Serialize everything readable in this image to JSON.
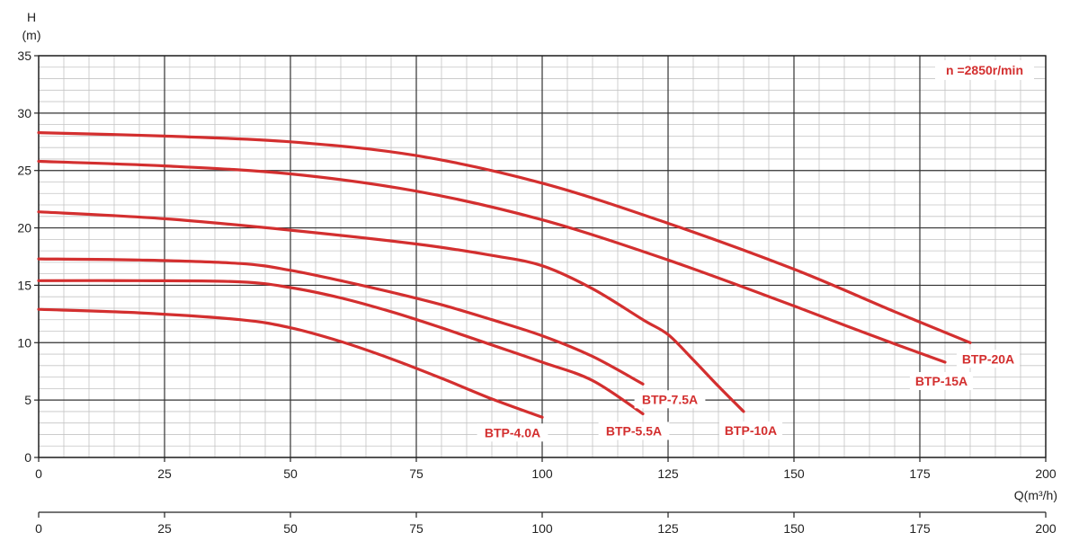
{
  "chart_data": {
    "type": "line",
    "ylabel": "H",
    "yunit": "(m)",
    "xlabel": "Q(m³/h)",
    "annotation": "n =2850r/min",
    "xlim": [
      0,
      200
    ],
    "ylim": [
      0,
      35
    ],
    "x_ticks": [
      0,
      25,
      50,
      75,
      100,
      125,
      150,
      175,
      200
    ],
    "y_ticks": [
      0,
      5,
      10,
      15,
      20,
      25,
      30,
      35
    ],
    "secondary_x_ticks": [
      0,
      25,
      50,
      75,
      100,
      125,
      150,
      175,
      200
    ],
    "grid": true,
    "series_color": "#d32f2f",
    "series": [
      {
        "name": "BTP-4.0A",
        "points": [
          [
            0,
            12.9
          ],
          [
            20,
            12.6
          ],
          [
            40,
            12.0
          ],
          [
            50,
            11.3
          ],
          [
            60,
            10.1
          ],
          [
            70,
            8.6
          ],
          [
            80,
            6.9
          ],
          [
            90,
            5.1
          ],
          [
            100,
            3.5
          ]
        ]
      },
      {
        "name": "BTP-5.5A",
        "points": [
          [
            0,
            15.4
          ],
          [
            20,
            15.4
          ],
          [
            40,
            15.3
          ],
          [
            50,
            14.8
          ],
          [
            60,
            13.9
          ],
          [
            70,
            12.7
          ],
          [
            80,
            11.3
          ],
          [
            90,
            9.8
          ],
          [
            100,
            8.3
          ],
          [
            110,
            6.7
          ],
          [
            120,
            3.8
          ]
        ]
      },
      {
        "name": "BTP-7.5A",
        "points": [
          [
            0,
            17.3
          ],
          [
            20,
            17.2
          ],
          [
            40,
            16.9
          ],
          [
            50,
            16.3
          ],
          [
            60,
            15.4
          ],
          [
            70,
            14.4
          ],
          [
            80,
            13.3
          ],
          [
            90,
            12.0
          ],
          [
            100,
            10.6
          ],
          [
            110,
            8.8
          ],
          [
            120,
            6.4
          ]
        ]
      },
      {
        "name": "BTP-10A",
        "points": [
          [
            0,
            21.4
          ],
          [
            25,
            20.8
          ],
          [
            50,
            19.8
          ],
          [
            75,
            18.6
          ],
          [
            90,
            17.6
          ],
          [
            100,
            16.7
          ],
          [
            110,
            14.7
          ],
          [
            120,
            12.0
          ],
          [
            125,
            10.7
          ],
          [
            130,
            8.5
          ],
          [
            135,
            6.2
          ],
          [
            140,
            4.0
          ]
        ]
      },
      {
        "name": "BTP-15A",
        "points": [
          [
            0,
            25.8
          ],
          [
            25,
            25.4
          ],
          [
            50,
            24.7
          ],
          [
            75,
            23.2
          ],
          [
            100,
            20.7
          ],
          [
            125,
            17.2
          ],
          [
            150,
            13.2
          ],
          [
            165,
            10.7
          ],
          [
            180,
            8.3
          ]
        ]
      },
      {
        "name": "BTP-20A",
        "points": [
          [
            0,
            28.3
          ],
          [
            25,
            28.0
          ],
          [
            50,
            27.5
          ],
          [
            75,
            26.3
          ],
          [
            100,
            23.9
          ],
          [
            125,
            20.4
          ],
          [
            150,
            16.4
          ],
          [
            170,
            12.7
          ],
          [
            185,
            10.0
          ]
        ]
      }
    ]
  }
}
